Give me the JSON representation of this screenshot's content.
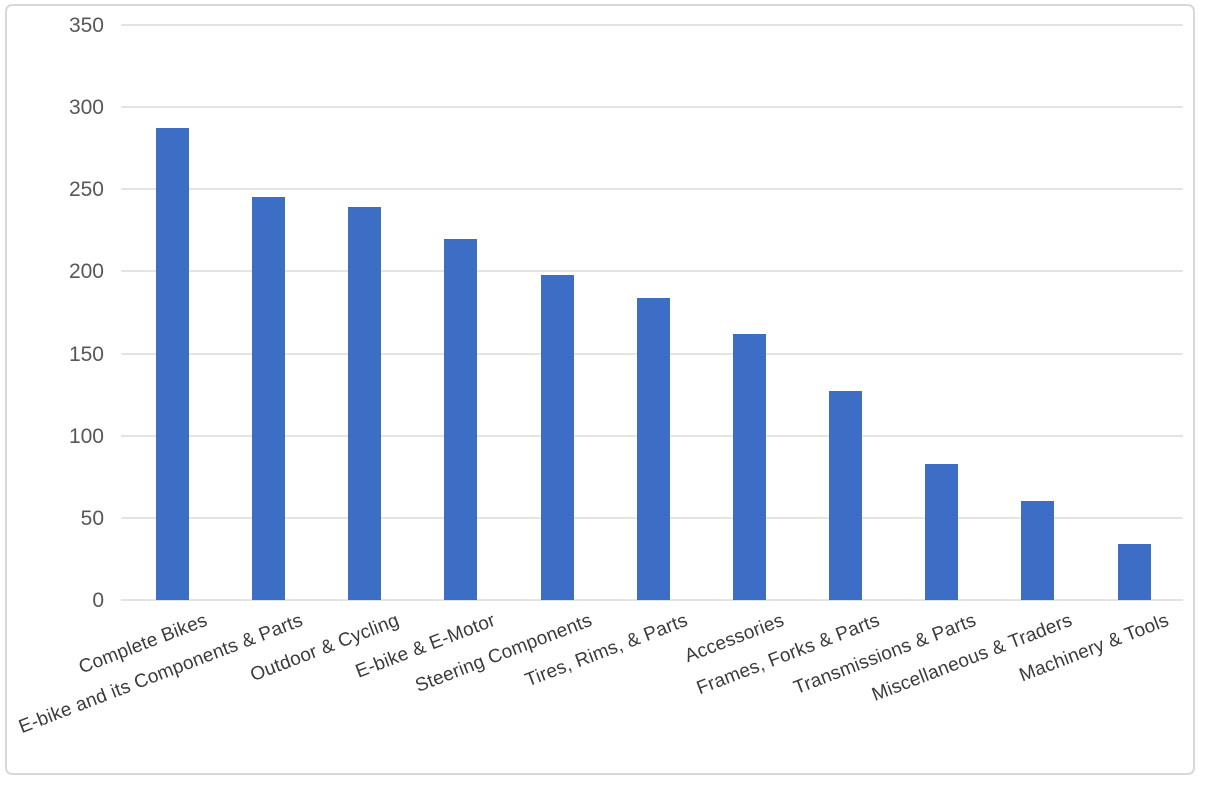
{
  "chart_data": {
    "type": "bar",
    "title": "",
    "xlabel": "",
    "ylabel": "",
    "categories": [
      "Complete Bikes",
      "E-bike and its Components & Parts",
      "Outdoor & Cycling",
      "E-bike & E-Motor",
      "Steering Components",
      "Tires, Rims, & Parts",
      "Accessories",
      "Frames, Forks & Parts",
      "Transmissions & Parts",
      "Miscellaneous & Traders",
      "Machinery & Tools"
    ],
    "values": [
      287,
      245,
      239,
      220,
      198,
      184,
      162,
      127,
      83,
      60,
      34
    ],
    "ylim": [
      0,
      350
    ],
    "yticks": [
      0,
      50,
      100,
      150,
      200,
      250,
      300,
      350
    ],
    "grid": true,
    "legend": "none",
    "bar_color": "#3d6ec6",
    "gridline_color": "#e4e4e4",
    "ytick_color": "#575757",
    "xlabel_color": "#3b3b3b",
    "frame_border_color": "#d8d8d8",
    "background_color": "#ffffff",
    "x_label_rotation_deg": -21
  }
}
